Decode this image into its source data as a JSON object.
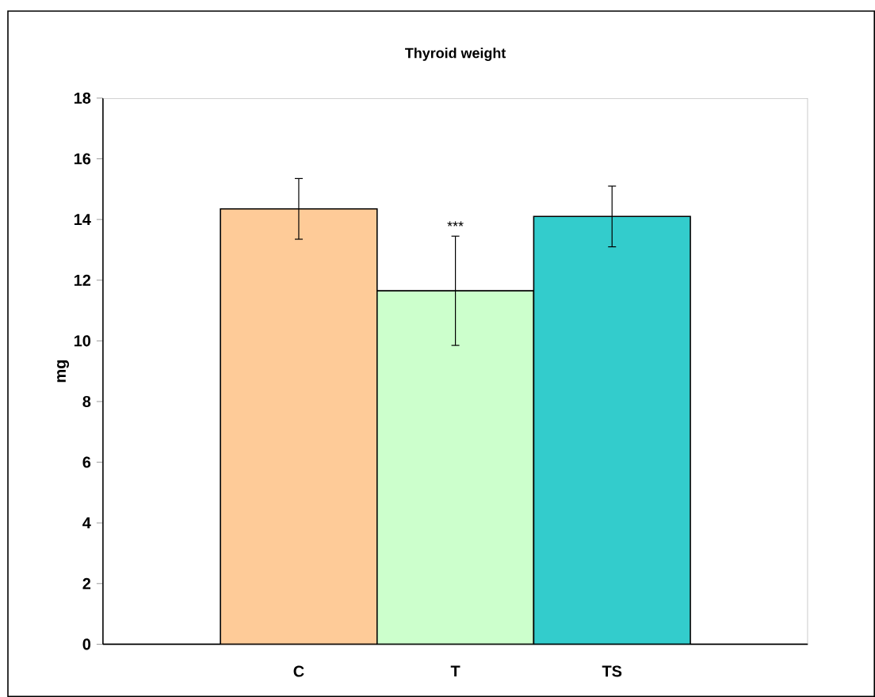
{
  "chart_data": {
    "type": "bar",
    "title": "Thyroid weight",
    "ylabel": "mg",
    "categories": [
      "C",
      "T",
      "TS"
    ],
    "values": [
      14.35,
      11.65,
      14.1
    ],
    "colors": [
      "#fecb98",
      "#ccffcc",
      "#33cccc"
    ],
    "errors": [
      1.0,
      1.8,
      1.0
    ],
    "annotations": [
      "***"
    ],
    "ylim": [
      0,
      18
    ],
    "yticks": [
      0,
      2,
      4,
      6,
      8,
      10,
      12,
      14,
      16,
      18
    ],
    "grid": false
  }
}
